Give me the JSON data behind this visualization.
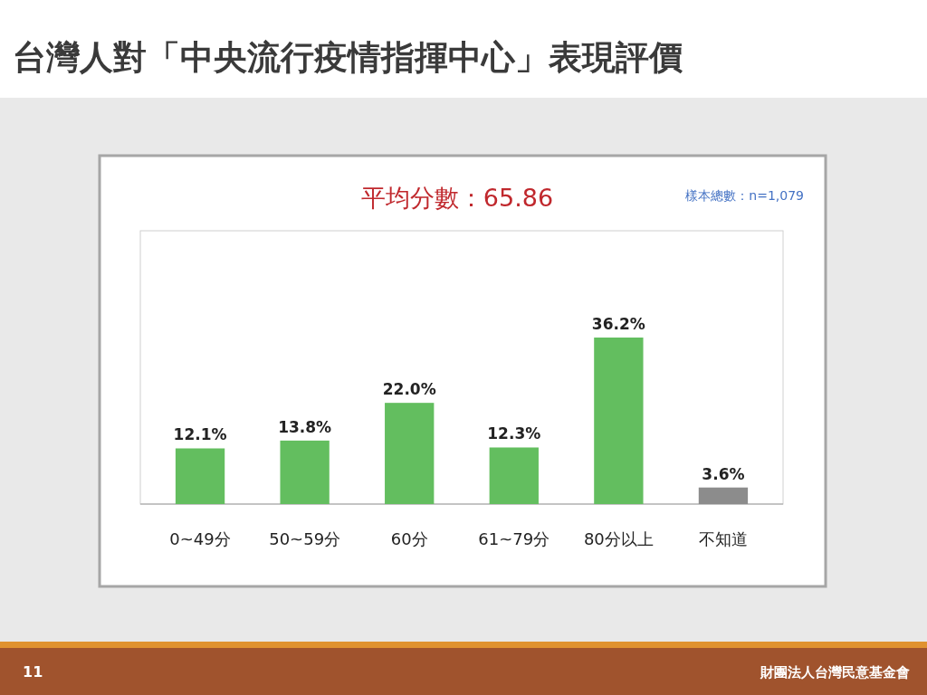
{
  "chart_data": {
    "type": "bar",
    "title": "台灣人對「中央流行疫情指揮中心」表現評價",
    "subtitle": "平均分數：65.86",
    "annotations": [
      "樣本總數：n=1,079",
      "11",
      "財團法人台灣民意基金會"
    ],
    "categories": [
      "0~49分",
      "50~59分",
      "60分",
      "61~79分",
      "80分以上",
      "不知道"
    ],
    "values": [
      12.1,
      13.8,
      22.0,
      12.3,
      36.2,
      3.6
    ],
    "value_labels": [
      "12.1%",
      "13.8%",
      "22.0%",
      "12.3%",
      "36.2%",
      "3.6%"
    ],
    "colors": [
      "#63be5f",
      "#63be5f",
      "#63be5f",
      "#63be5f",
      "#63be5f",
      "#8c8c8c"
    ]
  }
}
